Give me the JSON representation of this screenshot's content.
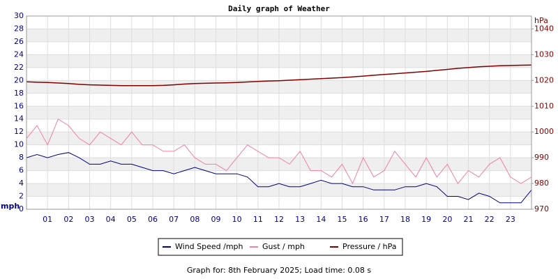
{
  "chart_data": {
    "type": "line",
    "title": "Daily graph of Weather",
    "y_label": "mph",
    "y2_label": "hPa",
    "footer": "Graph for: 8th February 2025; Load time: 0.08 s",
    "x": [
      0,
      0.5,
      1,
      1.5,
      2,
      2.5,
      3,
      3.5,
      4,
      4.5,
      5,
      5.5,
      6,
      6.5,
      7,
      7.5,
      8,
      8.5,
      9,
      9.5,
      10,
      10.5,
      11,
      11.5,
      12,
      12.5,
      13,
      13.5,
      14,
      14.5,
      15,
      15.5,
      16,
      16.5,
      17,
      17.5,
      18,
      18.5,
      19,
      19.5,
      20,
      20.5,
      21,
      21.5,
      22,
      22.5,
      23,
      23.5,
      24
    ],
    "xlim": [
      0,
      24
    ],
    "xticks": [
      {
        "value": 1,
        "label": "01"
      },
      {
        "value": 2,
        "label": "02"
      },
      {
        "value": 3,
        "label": "03"
      },
      {
        "value": 4,
        "label": "04"
      },
      {
        "value": 5,
        "label": "05"
      },
      {
        "value": 6,
        "label": "06"
      },
      {
        "value": 7,
        "label": "07"
      },
      {
        "value": 8,
        "label": "08"
      },
      {
        "value": 9,
        "label": "09"
      },
      {
        "value": 10,
        "label": "10"
      },
      {
        "value": 11,
        "label": "11"
      },
      {
        "value": 12,
        "label": "12"
      },
      {
        "value": 13,
        "label": "13"
      },
      {
        "value": 14,
        "label": "14"
      },
      {
        "value": 15,
        "label": "15"
      },
      {
        "value": 16,
        "label": "16"
      },
      {
        "value": 17,
        "label": "17"
      },
      {
        "value": 18,
        "label": "18"
      },
      {
        "value": 19,
        "label": "19"
      },
      {
        "value": 20,
        "label": "20"
      },
      {
        "value": 21,
        "label": "21"
      },
      {
        "value": 22,
        "label": "22"
      },
      {
        "value": 23,
        "label": "23"
      }
    ],
    "ylim": [
      0,
      30
    ],
    "yticks": [
      0,
      2,
      4,
      6,
      8,
      10,
      12,
      14,
      16,
      18,
      20,
      22,
      24,
      26,
      28,
      30
    ],
    "y2lim": [
      970,
      1045
    ],
    "y2ticks": [
      970,
      980,
      990,
      1000,
      1010,
      1020,
      1030,
      1040
    ],
    "grid": true,
    "series": [
      {
        "name": "Wind Speed /mph",
        "color": "#000080",
        "values": [
          8,
          8.5,
          8,
          8.5,
          8.8,
          8,
          7,
          7,
          7.5,
          7,
          7,
          6.5,
          6,
          6,
          5.5,
          6,
          6.5,
          6,
          5.5,
          5.5,
          5.5,
          5,
          3.5,
          3.5,
          4,
          3.5,
          3.5,
          4,
          4.5,
          4,
          4,
          3.5,
          3.5,
          3,
          3,
          3,
          3.5,
          3.5,
          4,
          3.5,
          2,
          2,
          1.5,
          2.5,
          2,
          1,
          1,
          1,
          3
        ]
      },
      {
        "name": "Gust / mph",
        "color": "#f080a8",
        "values": [
          11,
          13,
          10,
          14,
          13,
          11,
          10,
          12,
          11,
          10,
          12,
          10,
          10,
          9,
          9,
          10,
          8,
          7,
          7,
          6,
          8,
          10,
          9,
          8,
          8,
          7,
          9,
          6,
          6,
          5,
          7,
          4,
          8,
          5,
          6,
          9,
          7,
          5,
          8,
          5,
          7,
          4,
          6,
          5,
          7,
          8,
          5,
          4,
          5
        ]
      },
      {
        "name": "Pressure / hPa",
        "color": "#800000",
        "axis": "y2",
        "values": [
          1019.5,
          1019.3,
          1019.2,
          1019,
          1018.8,
          1018.5,
          1018.3,
          1018.2,
          1018.1,
          1018,
          1018,
          1018,
          1018,
          1018.1,
          1018.3,
          1018.6,
          1018.8,
          1018.9,
          1019,
          1019.1,
          1019.2,
          1019.4,
          1019.6,
          1019.8,
          1019.9,
          1020.1,
          1020.3,
          1020.5,
          1020.7,
          1020.9,
          1021.1,
          1021.4,
          1021.7,
          1022,
          1022.3,
          1022.6,
          1022.9,
          1023.2,
          1023.5,
          1023.9,
          1024.3,
          1024.7,
          1025,
          1025.3,
          1025.5,
          1025.7,
          1025.8,
          1025.9,
          1026
        ]
      }
    ]
  }
}
